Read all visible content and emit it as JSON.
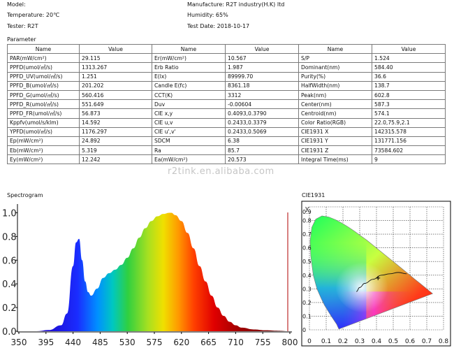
{
  "header": {
    "model_label": "Model:",
    "temperature": "Temperature: 20℃",
    "tester": "Tester: R2T",
    "manufacture": "Manufacture: R2T industry(H.K) ltd",
    "humidity": "Humidity: 65%",
    "test_date": "Test Date: 2018-10-17"
  },
  "parameter": {
    "title": "Parameter",
    "columns": [
      "Name",
      "Value",
      "Name",
      "Value",
      "Name",
      "Value"
    ],
    "rows": [
      [
        "PAR(mW/cm²)",
        "29.115",
        "Er(mW/cm²)",
        "10.567",
        "S/P",
        "1.524"
      ],
      [
        "PPFD(umol/㎡/s)",
        "1313.267",
        "Erb Ratio",
        "1.987",
        "Dominant(nm)",
        "584.40"
      ],
      [
        "PPFD_UV(umol/㎡/s)",
        "1.251",
        "E(lx)",
        "89999.70",
        "Purity(%)",
        "36.6"
      ],
      [
        "PPFD_B(umol/㎡/s)",
        "201.202",
        "Candle E(fc)",
        "8361.18",
        "HalfWidth(nm)",
        "138.7"
      ],
      [
        "PPFD_G(umol/㎡/s)",
        "560.416",
        "CCT(K)",
        "3312",
        "Peak(nm)",
        "602.8"
      ],
      [
        "PPFD_R(umol/㎡/s)",
        "551.649",
        "Duv",
        "-0.00604",
        "Center(nm)",
        "587.3"
      ],
      [
        "PPFD_FR(umol/㎡/s)",
        "56.873",
        "CIE x,y",
        "0.4093,0.3790",
        "Centroid(nm)",
        "574.1"
      ],
      [
        "Kppfv(umol/s/klm)",
        "14.592",
        "CIE u,v",
        "0.2433,0.3379",
        "Color Ratio(RGB)",
        "22.0,75.9,2.1"
      ],
      [
        "YPFD(umol/㎡/s)",
        "1176.297",
        "CIE u',v'",
        "0.2433,0.5069",
        "CIE1931 X",
        "142315.578"
      ],
      [
        "Ep(mW/cm²)",
        "24.892",
        "SDCM",
        "6.38",
        "CIE1931 Y",
        "131771.156"
      ],
      [
        "Eb(mW/cm²)",
        "5.319",
        "Ra",
        "85.7",
        "CIE1931 Z",
        "73584.602"
      ],
      [
        "Ey(mW/cm²)",
        "12.242",
        "Ea(mW/cm²)",
        "20.573",
        "Integral Time(ms)",
        "9"
      ]
    ]
  },
  "watermark": "r2tink.en.alibaba.com",
  "spectrogram": {
    "title": "Spectrogram",
    "x_ticks": [
      "350",
      "395",
      "440",
      "485",
      "530",
      "575",
      "620",
      "665",
      "710",
      "755",
      "800"
    ],
    "y_ticks": [
      "0.0",
      "0.2",
      "0.4",
      "0.6",
      "0.8",
      "1.0"
    ]
  },
  "cie": {
    "title": "CIE1931",
    "y_axis_label": "y",
    "x_ticks": [
      "0",
      "0.1",
      "0.2",
      "0.3",
      "0.4",
      "0.5",
      "0.6",
      "0.7",
      "0.8"
    ],
    "y_ticks": [
      "0",
      "0.1",
      "0.2",
      "0.3",
      "0.4",
      "0.5",
      "0.6",
      "0.7",
      "0.8",
      "0.9"
    ]
  },
  "chart_data": [
    {
      "type": "area",
      "title": "Spectrogram",
      "xlabel": "",
      "ylabel": "",
      "xlim": [
        350,
        800
      ],
      "ylim": [
        0,
        1.05
      ],
      "x": [
        380,
        400,
        420,
        430,
        440,
        445,
        450,
        455,
        460,
        465,
        470,
        480,
        490,
        500,
        510,
        520,
        530,
        540,
        550,
        560,
        570,
        580,
        590,
        600,
        603,
        610,
        620,
        630,
        640,
        650,
        660,
        670,
        680,
        690,
        700,
        710,
        720,
        740,
        760,
        780,
        800
      ],
      "values": [
        0.0,
        0.01,
        0.05,
        0.15,
        0.55,
        0.75,
        0.78,
        0.6,
        0.42,
        0.33,
        0.3,
        0.36,
        0.45,
        0.49,
        0.52,
        0.56,
        0.62,
        0.7,
        0.79,
        0.87,
        0.93,
        0.97,
        0.99,
        1.0,
        1.0,
        0.98,
        0.93,
        0.83,
        0.7,
        0.55,
        0.42,
        0.3,
        0.2,
        0.13,
        0.08,
        0.05,
        0.03,
        0.015,
        0.008,
        0.004,
        0.0
      ],
      "grid": false
    },
    {
      "type": "scatter",
      "title": "CIE1931",
      "xlim": [
        0,
        0.8
      ],
      "ylim": [
        0,
        0.9
      ],
      "grid": true,
      "point": {
        "x": 0.4093,
        "y": 0.379
      },
      "planckian_locus": [
        [
          0.28,
          0.28
        ],
        [
          0.3,
          0.31
        ],
        [
          0.33,
          0.34
        ],
        [
          0.38,
          0.37
        ],
        [
          0.43,
          0.4
        ],
        [
          0.48,
          0.41
        ],
        [
          0.53,
          0.42
        ],
        [
          0.58,
          0.41
        ]
      ]
    }
  ]
}
